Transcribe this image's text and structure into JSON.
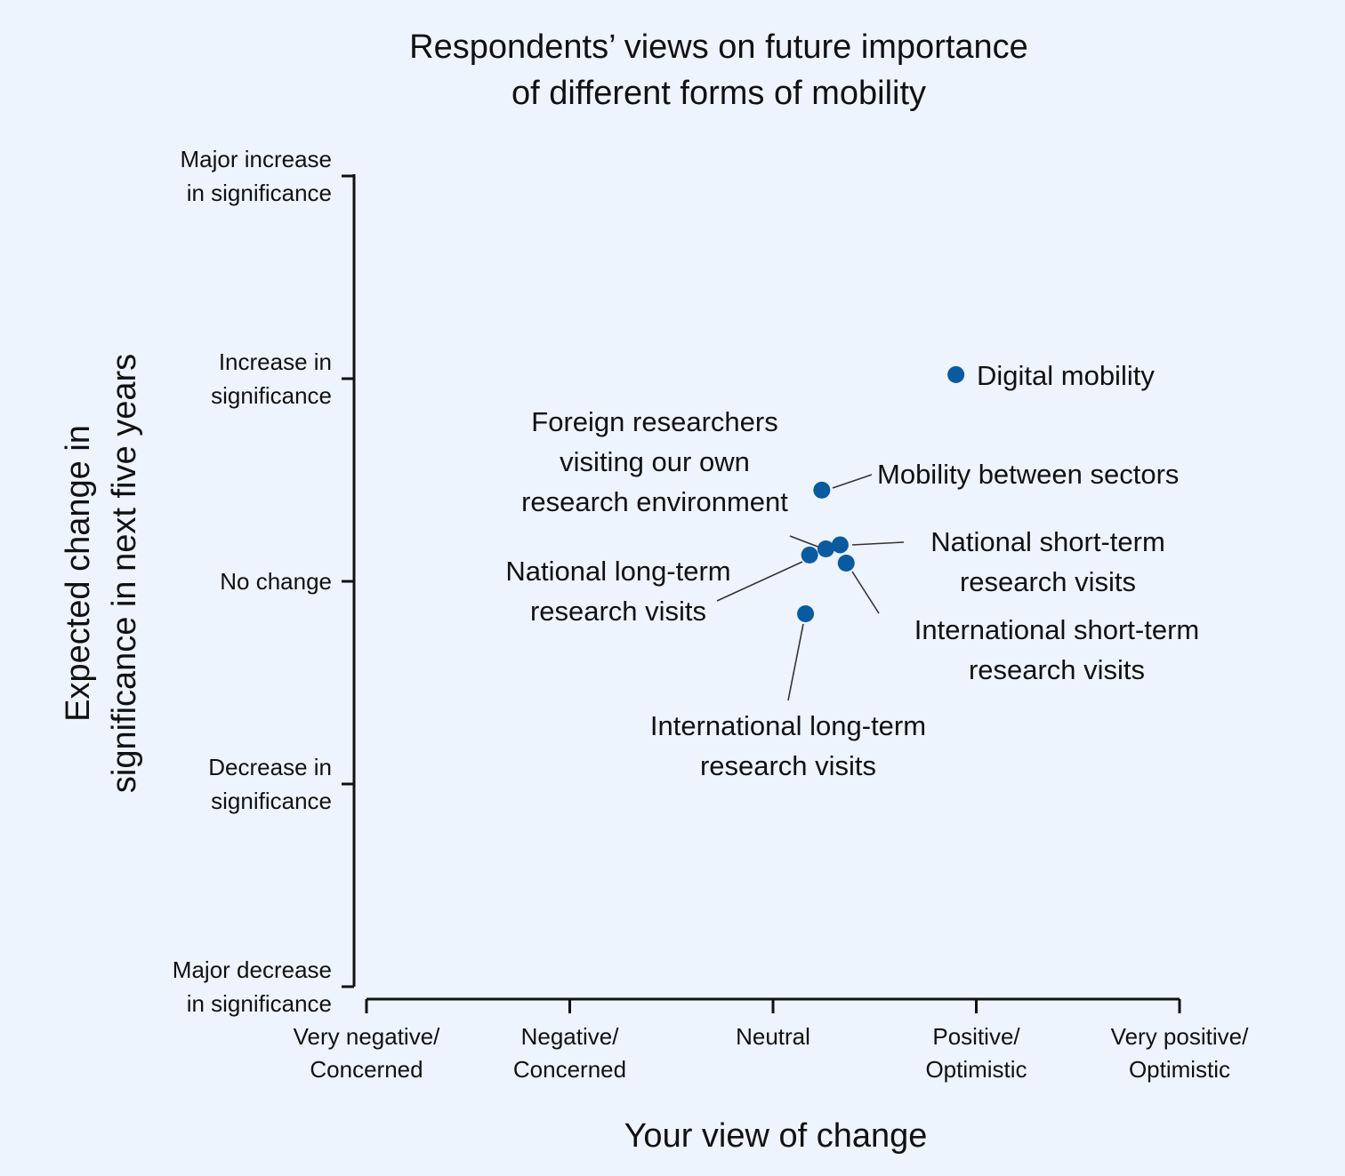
{
  "chart_data": {
    "type": "scatter",
    "title": [
      "Respondents’ views on future importance",
      "of different forms of mobility"
    ],
    "xlabel": "Your view of change",
    "ylabel": [
      "Expected change in",
      "significance in next five years"
    ],
    "x_ticks": [
      {
        "value": -2,
        "lines": [
          "Very negative/",
          "Concerned"
        ]
      },
      {
        "value": -1,
        "lines": [
          "Negative/",
          "Concerned"
        ]
      },
      {
        "value": 0,
        "lines": [
          "Neutral"
        ]
      },
      {
        "value": 1,
        "lines": [
          "Positive/",
          "Optimistic"
        ]
      },
      {
        "value": 2,
        "lines": [
          "Very positive/",
          "Optimistic"
        ]
      }
    ],
    "y_ticks": [
      {
        "value": 2,
        "lines": [
          "Major increase",
          "in significance"
        ]
      },
      {
        "value": 1,
        "lines": [
          "Increase in",
          "significance"
        ]
      },
      {
        "value": 0,
        "lines": [
          "No change"
        ]
      },
      {
        "value": -1,
        "lines": [
          "Decrease in",
          "significance"
        ]
      },
      {
        "value": -2,
        "lines": [
          "Major decrease",
          "in significance"
        ]
      }
    ],
    "xlim": [
      -2,
      2
    ],
    "ylim": [
      -2,
      2
    ],
    "grid": false,
    "points": [
      {
        "name": "Digital mobility",
        "lines": [
          "Digital mobility"
        ],
        "x": 0.9,
        "y": 1.02
      },
      {
        "name": "Mobility between sectors",
        "lines": [
          "Mobility between sectors"
        ],
        "x": 0.24,
        "y": 0.45
      },
      {
        "name": "Foreign researchers visiting our own research environment",
        "lines": [
          "Foreign researchers",
          "visiting our own",
          "research environment"
        ],
        "x": 0.26,
        "y": 0.16
      },
      {
        "name": "National short-term research visits",
        "lines": [
          "National short-term",
          "research visits"
        ],
        "x": 0.33,
        "y": 0.18
      },
      {
        "name": "National long-term research visits",
        "lines": [
          "National long-term",
          "research visits"
        ],
        "x": 0.18,
        "y": 0.13
      },
      {
        "name": "International short-term research visits",
        "lines": [
          "International short-term",
          "research visits"
        ],
        "x": 0.36,
        "y": 0.09
      },
      {
        "name": "International long-term research visits",
        "lines": [
          "International long-term",
          "research visits"
        ],
        "x": 0.16,
        "y": -0.16
      }
    ],
    "point_color": "#0a5aa0",
    "background": "#eef4fd"
  }
}
